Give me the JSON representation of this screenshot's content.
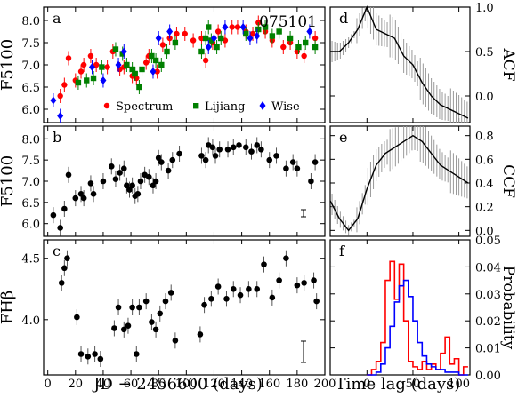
{
  "figure_id": "075101",
  "x_label_left": "JD − 2456600 (days)",
  "x_label_right": "Time lag (days)",
  "panel_letters": [
    "a",
    "b",
    "c",
    "d",
    "e",
    "f"
  ],
  "legend": [
    {
      "label": "Spectrum",
      "color": "#ff0000",
      "marker": "circle"
    },
    {
      "label": "Lijiang",
      "color": "#008000",
      "marker": "square"
    },
    {
      "label": "Wise",
      "color": "#0000ff",
      "marker": "diamond"
    }
  ],
  "chart_data": [
    {
      "panel": "a",
      "type": "scatter",
      "ylabel": "F5100",
      "ylim": [
        5.7,
        8.3
      ],
      "xlim": [
        -3,
        200
      ],
      "yticks": [
        6.0,
        6.5,
        7.0,
        7.5,
        8.0
      ],
      "series": [
        {
          "name": "Spectrum",
          "color": "#ff0000",
          "marker": "circle",
          "x": [
            9,
            12,
            15,
            20,
            24,
            26,
            31,
            35,
            43,
            47,
            52,
            55,
            61,
            64,
            71,
            73,
            79,
            83,
            88,
            93,
            99,
            105,
            111,
            114,
            119,
            123,
            128,
            133,
            137,
            143,
            148,
            152,
            157,
            162,
            170,
            175,
            180,
            185,
            193
          ],
          "y": [
            6.3,
            6.55,
            7.15,
            6.65,
            6.85,
            7.0,
            7.2,
            7.0,
            6.95,
            7.3,
            6.9,
            6.95,
            6.75,
            6.7,
            7.05,
            7.2,
            6.85,
            7.45,
            7.6,
            7.7,
            7.7,
            7.55,
            7.6,
            7.1,
            7.5,
            7.75,
            7.55,
            7.85,
            7.85,
            7.75,
            7.7,
            7.95,
            7.75,
            7.55,
            7.4,
            7.5,
            7.3,
            7.2,
            7.6
          ]
        },
        {
          "name": "Lijiang",
          "color": "#008000",
          "marker": "square",
          "x": [
            22,
            28,
            33,
            39,
            49,
            54,
            57,
            61,
            63,
            66,
            68,
            75,
            78,
            82,
            86,
            92,
            111,
            114,
            116,
            118,
            122,
            125,
            143,
            152,
            157,
            162,
            167,
            175,
            181,
            186,
            193
          ],
          "y": [
            6.6,
            6.65,
            6.7,
            6.95,
            7.35,
            7.25,
            7.0,
            6.9,
            6.8,
            6.5,
            6.9,
            7.2,
            7.1,
            7.0,
            7.3,
            7.5,
            7.3,
            7.6,
            7.85,
            7.55,
            7.4,
            7.6,
            7.7,
            7.8,
            7.85,
            7.65,
            7.75,
            7.6,
            7.4,
            7.5,
            7.4
          ]
        },
        {
          "name": "Wise",
          "color": "#0000ff",
          "marker": "diamond",
          "x": [
            4,
            9,
            32,
            40,
            51,
            55,
            76,
            80,
            88,
            116,
            120,
            128,
            141,
            146,
            151,
            189
          ],
          "y": [
            6.2,
            5.85,
            6.95,
            6.65,
            7.0,
            7.3,
            6.85,
            7.6,
            7.75,
            7.4,
            7.6,
            7.85,
            7.85,
            7.6,
            7.65,
            7.75
          ]
        }
      ]
    },
    {
      "panel": "b",
      "type": "scatter",
      "ylabel": "F5100",
      "ylim": [
        5.7,
        8.3
      ],
      "xlim": [
        -3,
        200
      ],
      "yticks": [
        6.0,
        6.5,
        7.0,
        7.5,
        8.0
      ],
      "errorbar_scale": "I",
      "x": [
        4,
        9,
        12,
        15,
        20,
        24,
        26,
        31,
        33,
        40,
        46,
        49,
        52,
        55,
        57,
        59,
        61,
        63,
        65,
        67,
        70,
        73,
        76,
        78,
        80,
        82,
        87,
        90,
        95,
        111,
        114,
        116,
        119,
        121,
        124,
        130,
        134,
        138,
        143,
        147,
        151,
        154,
        160,
        165,
        172,
        177,
        180,
        190,
        193
      ],
      "y": [
        6.2,
        5.9,
        6.35,
        7.15,
        6.6,
        6.7,
        6.6,
        6.95,
        6.7,
        7.0,
        7.35,
        7.05,
        7.2,
        7.3,
        6.9,
        6.8,
        6.9,
        6.65,
        6.7,
        7.0,
        7.15,
        7.1,
        6.9,
        7.0,
        7.55,
        7.45,
        7.25,
        7.5,
        7.65,
        7.6,
        7.5,
        7.85,
        7.8,
        7.6,
        7.75,
        7.75,
        7.8,
        7.85,
        7.8,
        7.7,
        7.85,
        7.75,
        7.5,
        7.6,
        7.3,
        7.45,
        7.3,
        7.0,
        7.45
      ]
    },
    {
      "panel": "c",
      "type": "scatter",
      "ylabel": "FHβ",
      "ylim": [
        3.55,
        4.65
      ],
      "xlim": [
        -3,
        200
      ],
      "yticks": [
        4.0,
        4.5
      ],
      "x": [
        10,
        12,
        14,
        21,
        24,
        29,
        34,
        38,
        48,
        51,
        55,
        58,
        61,
        64,
        66,
        71,
        75,
        78,
        81,
        85,
        89,
        92,
        110,
        113,
        118,
        123,
        129,
        134,
        139,
        145,
        151,
        156,
        162,
        167,
        172,
        180,
        185,
        192,
        194
      ],
      "y": [
        4.3,
        4.42,
        4.5,
        4.02,
        3.72,
        3.7,
        3.72,
        3.68,
        3.93,
        4.1,
        3.92,
        3.95,
        4.1,
        3.72,
        4.1,
        4.15,
        3.98,
        3.92,
        4.05,
        4.15,
        4.22,
        3.83,
        3.88,
        4.12,
        4.17,
        4.27,
        4.17,
        4.25,
        4.2,
        4.25,
        4.25,
        4.45,
        4.18,
        4.32,
        4.5,
        4.28,
        4.3,
        4.32,
        4.15
      ]
    },
    {
      "panel": "d",
      "type": "line",
      "ylabel": "ACF",
      "ylim": [
        -0.3,
        1.0
      ],
      "xlim": [
        -40,
        112
      ],
      "yticks": [
        0.0,
        0.5,
        1.0
      ],
      "x": [
        -40,
        -30,
        -20,
        -10,
        0,
        10,
        20,
        30,
        40,
        50,
        60,
        70,
        80,
        90,
        100,
        110
      ],
      "y": [
        0.5,
        0.5,
        0.6,
        0.75,
        1.0,
        0.75,
        0.7,
        0.65,
        0.45,
        0.35,
        0.15,
        0.0,
        -0.1,
        -0.15,
        -0.2,
        -0.25
      ]
    },
    {
      "panel": "e",
      "type": "line",
      "ylabel": "CCF",
      "ylim": [
        -0.05,
        0.88
      ],
      "xlim": [
        -40,
        112
      ],
      "yticks": [
        0.0,
        0.2,
        0.4,
        0.6,
        0.8
      ],
      "x": [
        -40,
        -30,
        -20,
        -10,
        0,
        10,
        20,
        30,
        40,
        50,
        60,
        70,
        80,
        90,
        100,
        110
      ],
      "y": [
        0.25,
        0.1,
        0.0,
        0.1,
        0.35,
        0.55,
        0.65,
        0.7,
        0.75,
        0.8,
        0.75,
        0.65,
        0.55,
        0.5,
        0.45,
        0.4
      ]
    },
    {
      "panel": "f",
      "type": "histogram",
      "ylabel": "Probability",
      "ylim": [
        0,
        0.05
      ],
      "xlim": [
        -40,
        112
      ],
      "yticks": [
        0.0,
        0.01,
        0.02,
        0.03,
        0.04,
        0.05
      ],
      "series": [
        {
          "name": "",
          "color": "#ff0000",
          "x": [
            0,
            5,
            10,
            15,
            20,
            25,
            30,
            35,
            40,
            45,
            50,
            55,
            60,
            65,
            70,
            75,
            80,
            85,
            90,
            95,
            100,
            105
          ],
          "y": [
            0.0,
            0.002,
            0.005,
            0.012,
            0.035,
            0.042,
            0.028,
            0.041,
            0.02,
            0.005,
            0.003,
            0.002,
            0.005,
            0.002,
            0.004,
            0.002,
            0.008,
            0.014,
            0.004,
            0.006,
            0.0,
            0.003
          ]
        },
        {
          "name": "",
          "color": "#0000ff",
          "x": [
            0,
            5,
            10,
            15,
            20,
            25,
            30,
            35,
            40,
            45,
            50,
            55,
            60,
            65,
            70,
            75,
            80,
            85,
            90,
            95,
            100,
            105
          ],
          "y": [
            0.0,
            0.0,
            0.001,
            0.004,
            0.01,
            0.018,
            0.027,
            0.033,
            0.035,
            0.029,
            0.02,
            0.012,
            0.007,
            0.004,
            0.003,
            0.002,
            0.002,
            0.001,
            0.001,
            0.001,
            0.0,
            0.0
          ]
        }
      ]
    }
  ]
}
